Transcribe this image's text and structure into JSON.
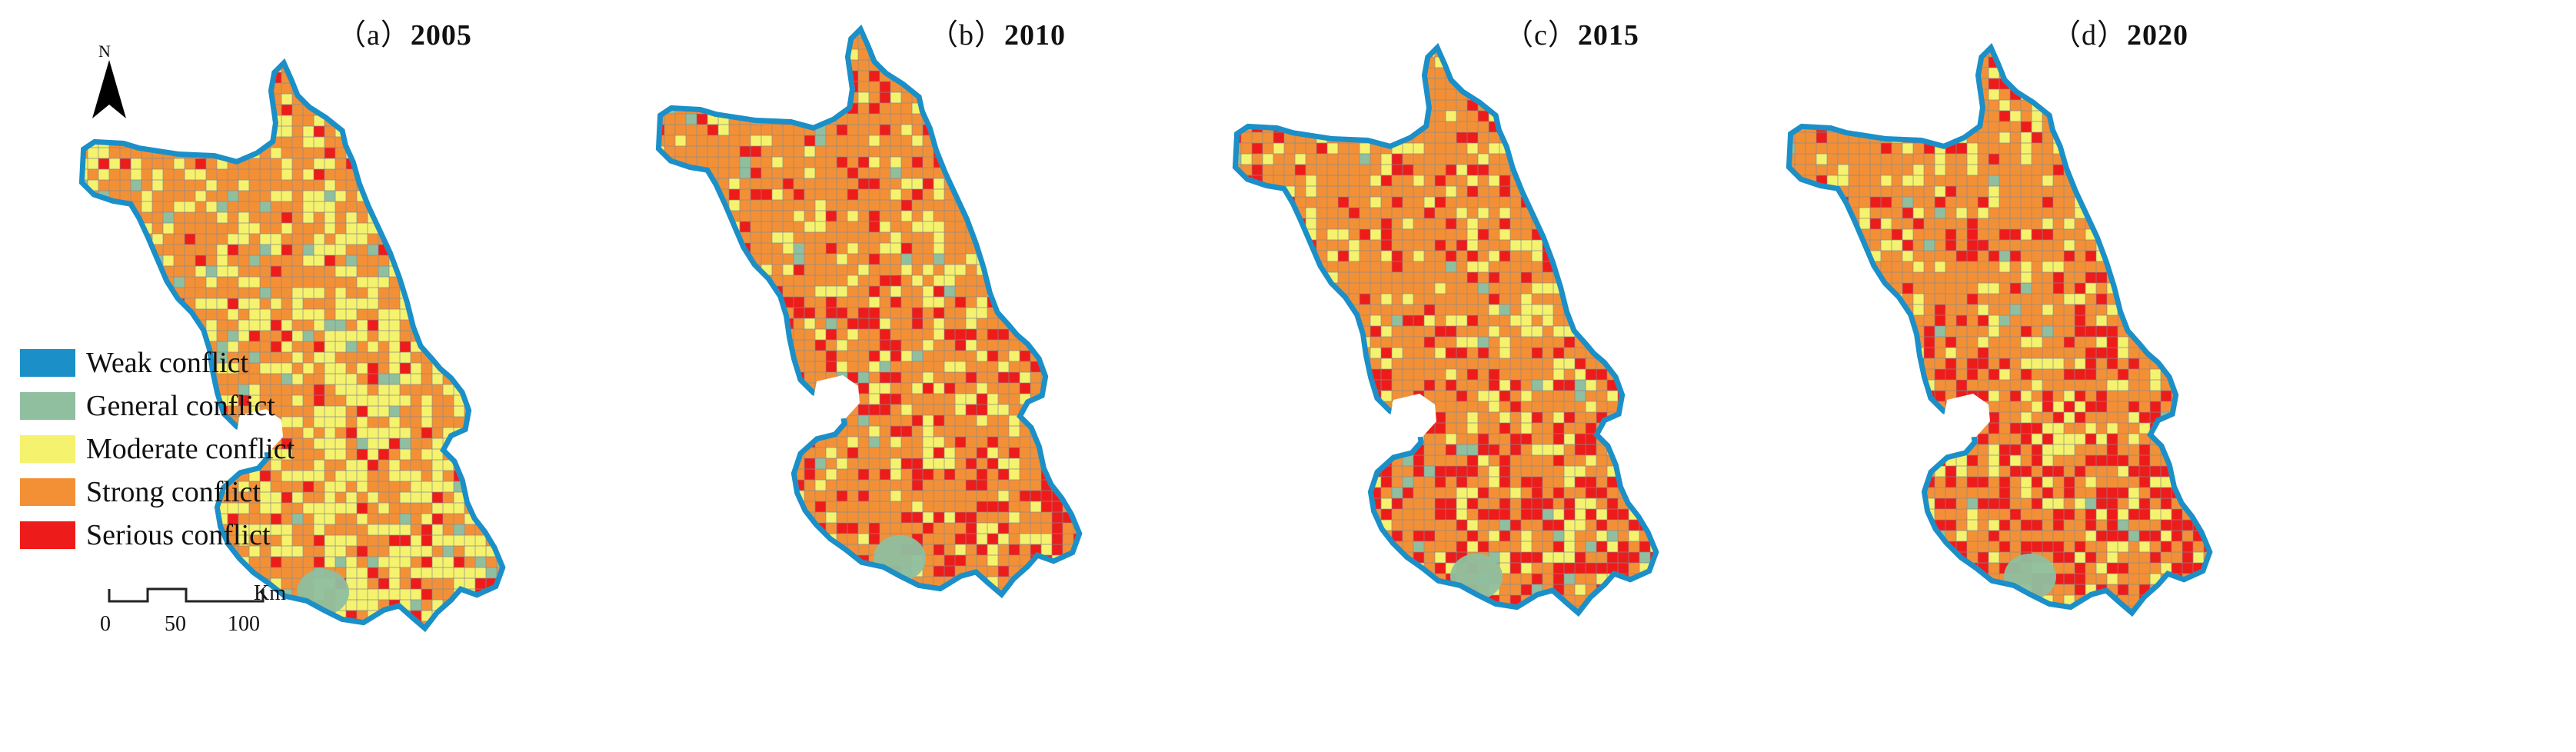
{
  "compass": {
    "label": "N",
    "icon": "north-arrow-icon"
  },
  "panels": [
    {
      "label_prefix": "（a）",
      "year": "2005"
    },
    {
      "label_prefix": "（b）",
      "year": "2010"
    },
    {
      "label_prefix": "（c）",
      "year": "2015"
    },
    {
      "label_prefix": "（d）",
      "year": "2020"
    }
  ],
  "legend": [
    {
      "label": "Weak conflict",
      "color": "#1b8fc8"
    },
    {
      "label": "General conflict",
      "color": "#8fbf9f"
    },
    {
      "label": "Moderate conflict",
      "color": "#f5f26e"
    },
    {
      "label": "Strong conflict",
      "color": "#f39036"
    },
    {
      "label": "Serious conflict",
      "color": "#ee1b1b"
    }
  ],
  "scale_bar": {
    "unit": "Km",
    "ticks": [
      "0",
      "50",
      "100"
    ]
  },
  "colors": {
    "grid_line": "#8a8a8a",
    "map_edge": "#1b8fc8"
  }
}
